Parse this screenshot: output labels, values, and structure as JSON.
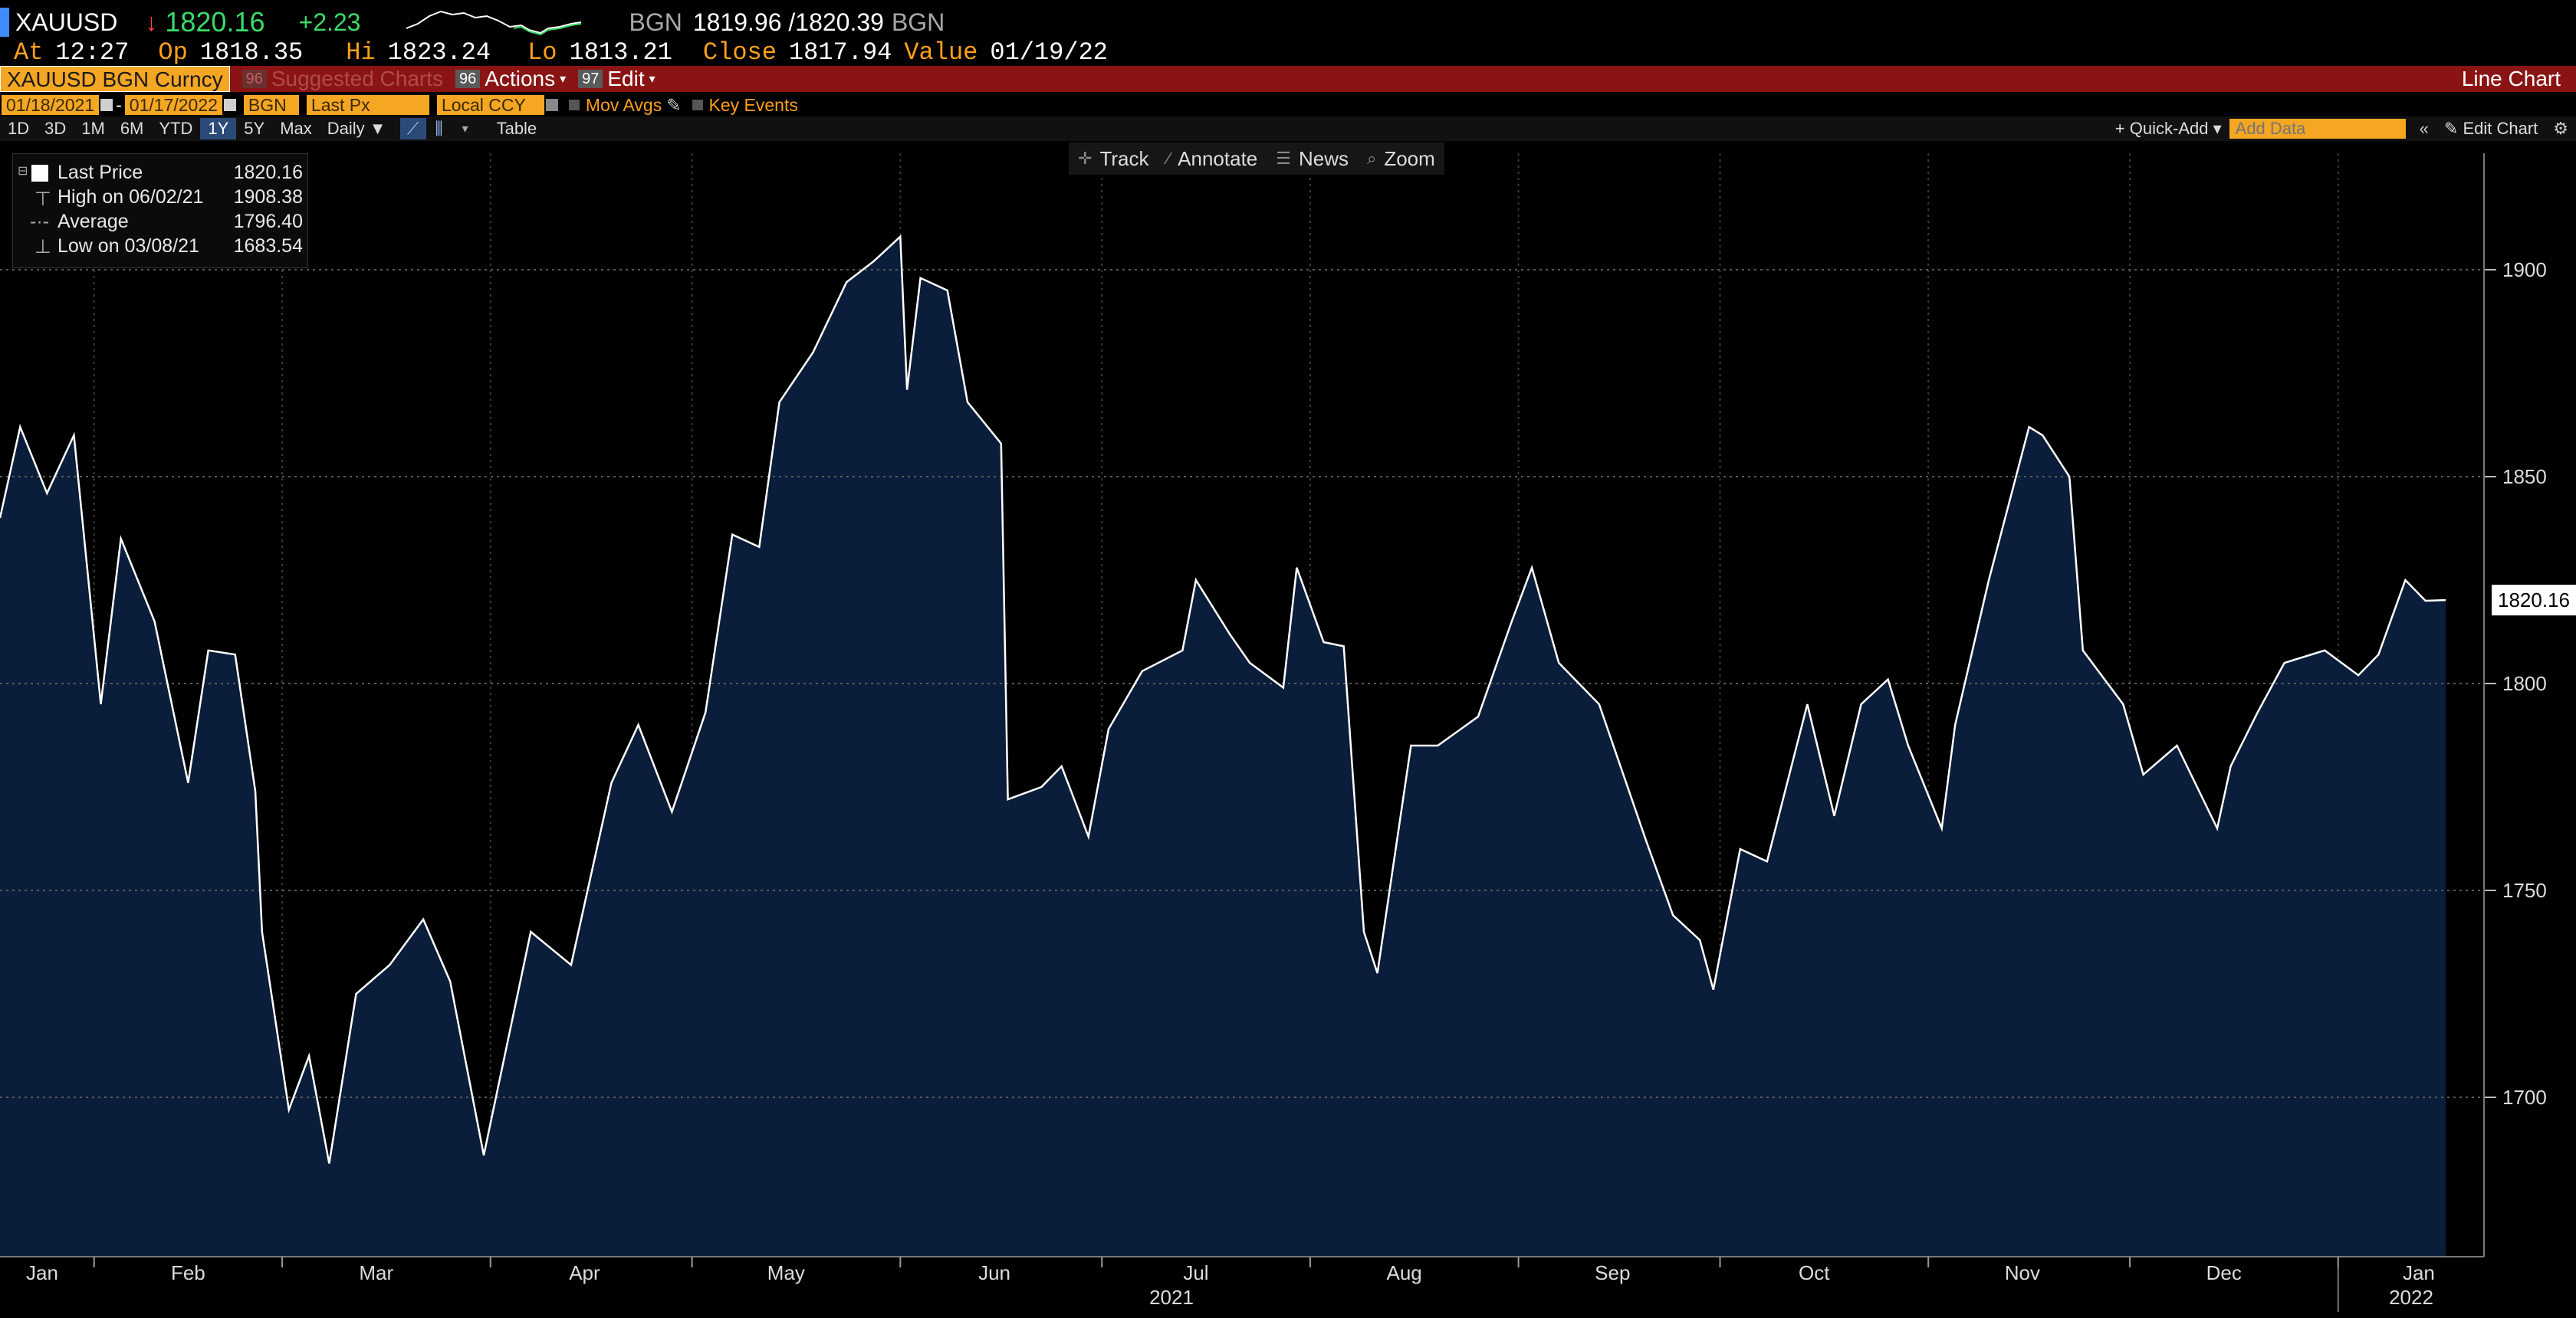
{
  "quote": {
    "ticker": "XAUUSD",
    "last": "1820.16",
    "change": "+2.23",
    "source": "BGN",
    "bid_ask": "1819.96 /1820.39",
    "source2": "BGN",
    "at_label": "At",
    "at_time": "12:27",
    "op_label": "Op",
    "op": "1818.35",
    "hi_label": "Hi",
    "hi": "1823.24",
    "lo_label": "Lo",
    "lo": "1813.21",
    "close_label": "Close",
    "close": "1817.94",
    "value_label": "Value",
    "value_date": "01/19/22"
  },
  "toolbar": {
    "security": "XAUUSD BGN Curncy",
    "suggested_num": "96",
    "suggested": "Suggested Charts",
    "actions_num": "96",
    "actions": "Actions",
    "edit_num": "97",
    "edit": "Edit",
    "chart_type": "Line Chart"
  },
  "fields": {
    "start_date": "01/18/2021",
    "end_date": "01/17/2022",
    "source": "BGN",
    "field": "Last Px",
    "currency": "Local CCY",
    "mov_avgs": "Mov Avgs",
    "key_events": "Key Events"
  },
  "periods": [
    "1D",
    "3D",
    "1M",
    "6M",
    "YTD",
    "1Y",
    "5Y",
    "Max"
  ],
  "selected_period": "1Y",
  "frequency": "Daily",
  "table_label": "Table",
  "quick_add": "Quick-Add",
  "add_data_placeholder": "Add Data",
  "edit_chart": "Edit Chart",
  "tools": {
    "track": "Track",
    "annotate": "Annotate",
    "news": "News",
    "zoom": "Zoom"
  },
  "legend": {
    "last_label": "Last Price",
    "last_value": "1820.16",
    "high_label": "High on 06/02/21",
    "high_value": "1908.38",
    "avg_label": "Average",
    "avg_value": "1796.40",
    "low_label": "Low on 03/08/21",
    "low_value": "1683.54"
  },
  "colors": {
    "line": "#ffffff",
    "area": "#0a1d3a",
    "toolbar": "#8a1414",
    "accent": "#f5a623",
    "up": "#3adb6a",
    "down": "#ff4444"
  },
  "chart_data": {
    "type": "area",
    "title": "",
    "xlabel": "",
    "ylabel": "",
    "ylim": [
      1660,
      1925
    ],
    "yticks": [
      1700,
      1750,
      1800,
      1850,
      1900
    ],
    "last_value_label": "1820.16",
    "x_month_labels": [
      "Jan",
      "Feb",
      "Mar",
      "Apr",
      "May",
      "Jun",
      "Jul",
      "Aug",
      "Sep",
      "Oct",
      "Nov",
      "Dec",
      "Jan"
    ],
    "x_year_labels": [
      "2021",
      "2022"
    ],
    "grid": true,
    "series": [
      {
        "name": "Last Price",
        "x": [
          "2021-01-18",
          "2021-01-21",
          "2021-01-25",
          "2021-01-29",
          "2021-02-02",
          "2021-02-05",
          "2021-02-10",
          "2021-02-15",
          "2021-02-18",
          "2021-02-22",
          "2021-02-25",
          "2021-02-26",
          "2021-03-02",
          "2021-03-05",
          "2021-03-08",
          "2021-03-12",
          "2021-03-17",
          "2021-03-22",
          "2021-03-26",
          "2021-03-31",
          "2021-04-07",
          "2021-04-13",
          "2021-04-19",
          "2021-04-23",
          "2021-04-28",
          "2021-05-03",
          "2021-05-07",
          "2021-05-11",
          "2021-05-14",
          "2021-05-19",
          "2021-05-24",
          "2021-05-28",
          "2021-06-01",
          "2021-06-02",
          "2021-06-04",
          "2021-06-08",
          "2021-06-11",
          "2021-06-16",
          "2021-06-17",
          "2021-06-22",
          "2021-06-25",
          "2021-06-29",
          "2021-07-02",
          "2021-07-07",
          "2021-07-13",
          "2021-07-15",
          "2021-07-20",
          "2021-07-23",
          "2021-07-28",
          "2021-07-30",
          "2021-08-03",
          "2021-08-06",
          "2021-08-09",
          "2021-08-11",
          "2021-08-16",
          "2021-08-20",
          "2021-08-26",
          "2021-08-31",
          "2021-09-03",
          "2021-09-07",
          "2021-09-13",
          "2021-09-20",
          "2021-09-24",
          "2021-09-28",
          "2021-09-30",
          "2021-10-04",
          "2021-10-08",
          "2021-10-14",
          "2021-10-18",
          "2021-10-22",
          "2021-10-26",
          "2021-10-29",
          "2021-11-03",
          "2021-11-05",
          "2021-11-10",
          "2021-11-16",
          "2021-11-18",
          "2021-11-22",
          "2021-11-24",
          "2021-11-30",
          "2021-12-03",
          "2021-12-08",
          "2021-12-14",
          "2021-12-16",
          "2021-12-20",
          "2021-12-24",
          "2021-12-30",
          "2022-01-04",
          "2022-01-07",
          "2022-01-11",
          "2022-01-14",
          "2022-01-17"
        ],
        "values": [
          1840,
          1862,
          1846,
          1860,
          1795,
          1835,
          1815,
          1776,
          1808,
          1807,
          1774,
          1740,
          1697,
          1710,
          1684,
          1725,
          1732,
          1743,
          1728,
          1686,
          1740,
          1732,
          1776,
          1790,
          1769,
          1793,
          1836,
          1833,
          1868,
          1880,
          1897,
          1902,
          1908,
          1871,
          1898,
          1895,
          1868,
          1858,
          1772,
          1775,
          1780,
          1763,
          1789,
          1803,
          1808,
          1825,
          1812,
          1805,
          1799,
          1828,
          1810,
          1809,
          1740,
          1730,
          1785,
          1785,
          1792,
          1815,
          1828,
          1805,
          1795,
          1762,
          1744,
          1738,
          1726,
          1760,
          1757,
          1795,
          1768,
          1795,
          1801,
          1785,
          1765,
          1790,
          1825,
          1862,
          1860,
          1850,
          1808,
          1795,
          1778,
          1785,
          1765,
          1780,
          1793,
          1805,
          1808,
          1802,
          1807,
          1825,
          1820,
          1820.16
        ]
      }
    ]
  }
}
